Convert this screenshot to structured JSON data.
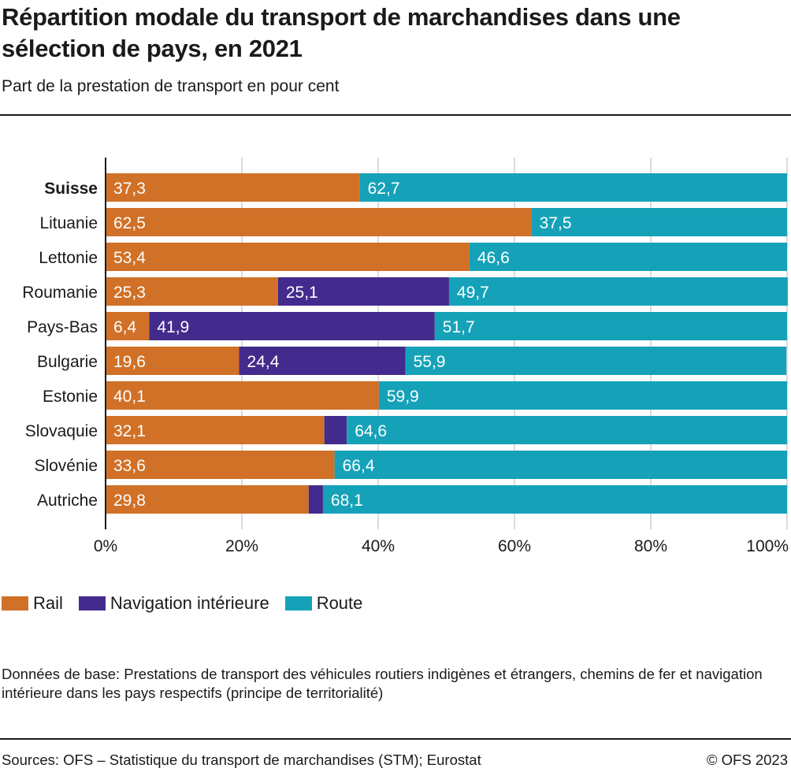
{
  "title": "Répartition modale du transport de marchandises dans une sélection de pays, en 2021",
  "subtitle": "Part de la prestation de transport en pour cent",
  "chart_data": {
    "type": "bar",
    "orientation": "horizontal",
    "stacked": true,
    "categories": [
      "Suisse",
      "Lituanie",
      "Lettonie",
      "Roumanie",
      "Pays-Bas",
      "Bulgarie",
      "Estonie",
      "Slovaquie",
      "Slovénie",
      "Autriche"
    ],
    "highlight_category": "Suisse",
    "series": [
      {
        "name": "Rail",
        "color": "#d07127",
        "values": [
          37.3,
          62.5,
          53.4,
          25.3,
          6.4,
          19.6,
          40.1,
          32.1,
          33.6,
          29.8
        ],
        "labels": [
          "37,3",
          "62,5",
          "53,4",
          "25,3",
          "6,4",
          "19,6",
          "40,1",
          "32,1",
          "33,6",
          "29,8"
        ]
      },
      {
        "name": "Navigation intérieure",
        "color": "#432b8e",
        "values": [
          0,
          0,
          0,
          25.1,
          41.9,
          24.4,
          0,
          3.3,
          0,
          2.1
        ],
        "labels": [
          "",
          "",
          "",
          "25,1",
          "41,9",
          "24,4",
          "",
          "",
          "",
          ""
        ]
      },
      {
        "name": "Route",
        "color": "#15a2b8",
        "values": [
          62.7,
          37.5,
          46.6,
          49.7,
          51.7,
          55.9,
          59.9,
          64.6,
          66.4,
          68.1
        ],
        "labels": [
          "62,7",
          "37,5",
          "46,6",
          "49,7",
          "51,7",
          "55,9",
          "59,9",
          "64,6",
          "66,4",
          "68,1"
        ]
      }
    ],
    "xlim": [
      0,
      100
    ],
    "xticks": [
      0,
      20,
      40,
      60,
      80,
      100
    ],
    "xtick_labels": [
      "0%",
      "20%",
      "40%",
      "60%",
      "80%",
      "100%"
    ],
    "grid": true,
    "legend": "bottom-left"
  },
  "note": "Données de base: Prestations de transport des véhicules routiers indigènes et étrangers, chemins de fer et navigation intérieure dans les pays respectifs (principe de territorialité)",
  "source": "Sources: OFS – Statistique du transport de marchandises (STM); Eurostat",
  "copyright": "© OFS 2023"
}
